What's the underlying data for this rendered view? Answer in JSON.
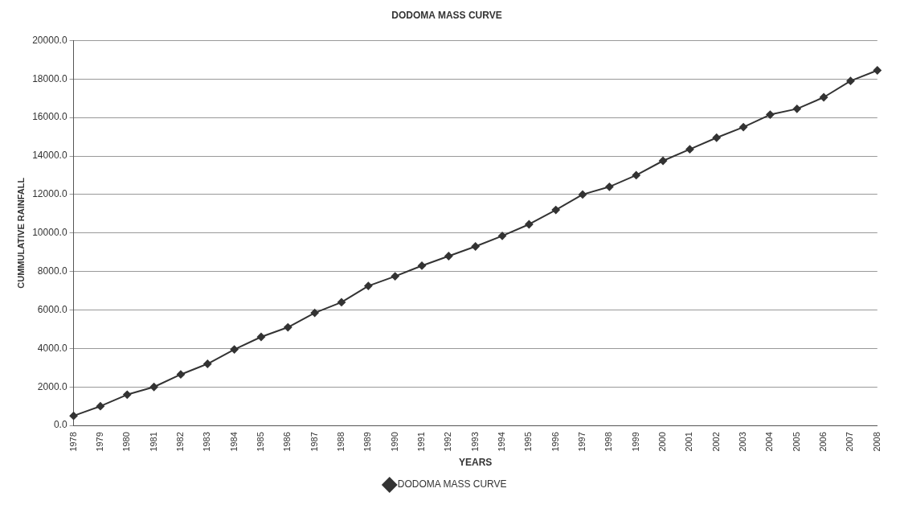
{
  "chart_data": {
    "type": "line",
    "title": "DODOMA MASS CURVE",
    "xlabel": "YEARS",
    "ylabel": "CUMMULATIVE RAINFALL",
    "categories": [
      "1978",
      "1979",
      "1980",
      "1981",
      "1982",
      "1983",
      "1984",
      "1985",
      "1986",
      "1987",
      "1988",
      "1989",
      "1990",
      "1991",
      "1992",
      "1993",
      "1994",
      "1995",
      "1996",
      "1997",
      "1998",
      "1999",
      "2000",
      "2001",
      "2002",
      "2003",
      "2004",
      "2005",
      "2006",
      "2007",
      "2008"
    ],
    "series": [
      {
        "name": "DODOMA MASS CURVE",
        "color": "#333333",
        "values": [
          500,
          1000,
          1600,
          2000,
          2650,
          3200,
          3950,
          4600,
          5100,
          5850,
          6400,
          7250,
          7750,
          8300,
          8800,
          9300,
          9850,
          10450,
          11200,
          12000,
          12400,
          13000,
          13750,
          14350,
          14950,
          15500,
          16150,
          16450,
          17050,
          17900,
          18450
        ]
      }
    ],
    "ylim": [
      0,
      20000
    ],
    "yticks": [
      {
        "value": 0,
        "label": "0.0"
      },
      {
        "value": 2000,
        "label": "2000.0"
      },
      {
        "value": 4000,
        "label": "4000.0"
      },
      {
        "value": 6000,
        "label": "6000.0"
      },
      {
        "value": 8000,
        "label": "8000.0"
      },
      {
        "value": 10000,
        "label": "10000.0"
      },
      {
        "value": 12000,
        "label": "12000.0"
      },
      {
        "value": 14000,
        "label": "14000.0"
      },
      {
        "value": 16000,
        "label": "16000.0"
      },
      {
        "value": 18000,
        "label": "18000.0"
      },
      {
        "value": 20000,
        "label": "20000.0"
      }
    ],
    "grid": "y",
    "legend": "bottom",
    "marker": "diamond",
    "line_style": "solid"
  }
}
